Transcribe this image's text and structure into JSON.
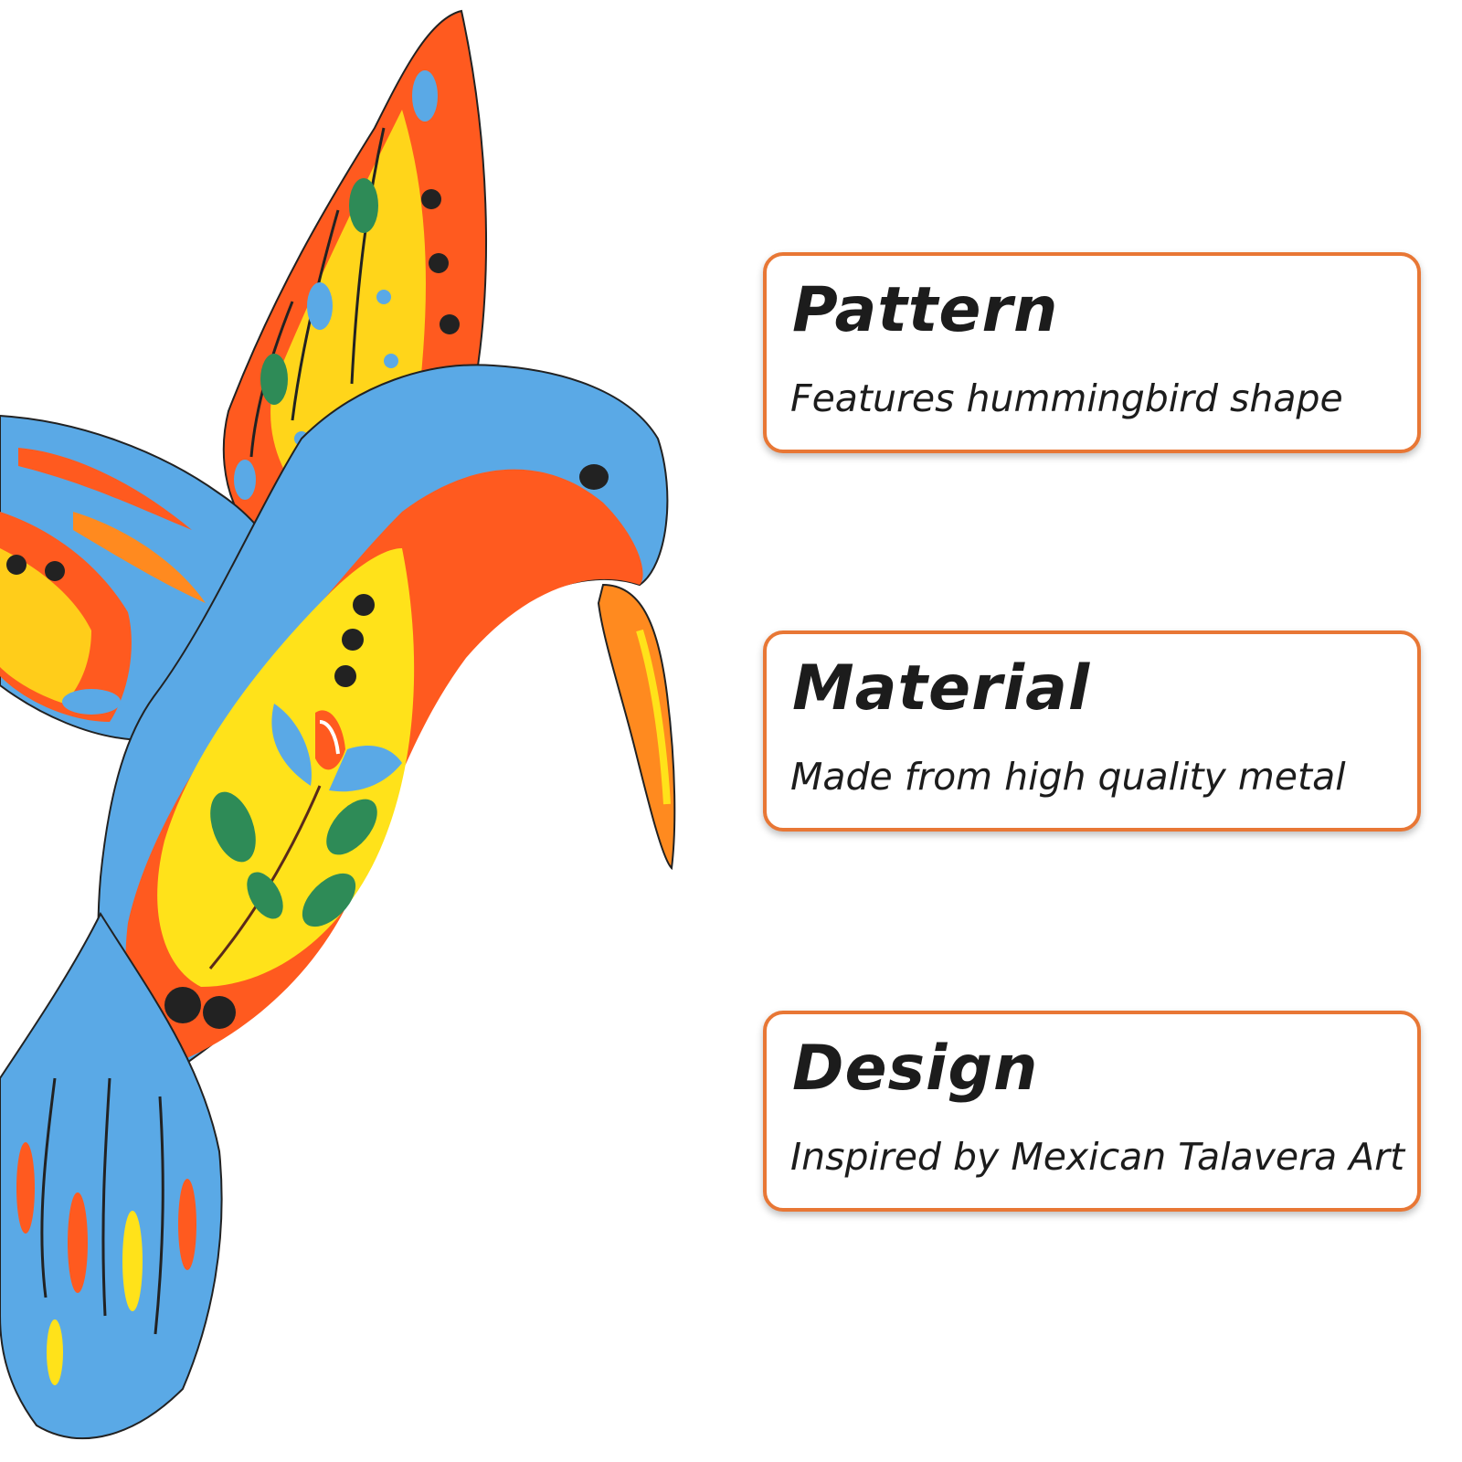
{
  "features": [
    {
      "title": "Pattern",
      "description": "Features hummingbird shape"
    },
    {
      "title": "Material",
      "description": "Made from high quality metal"
    },
    {
      "title": "Design",
      "description": "Inspired by Mexican Talavera Art"
    }
  ],
  "colors": {
    "card_border": "#e87735",
    "text": "#1c1c1c",
    "bird_blue": "#5aa9e6",
    "bird_orange": "#ff5a1f",
    "bird_yellow": "#ffe21a",
    "leaf_green": "#2e8b57"
  }
}
